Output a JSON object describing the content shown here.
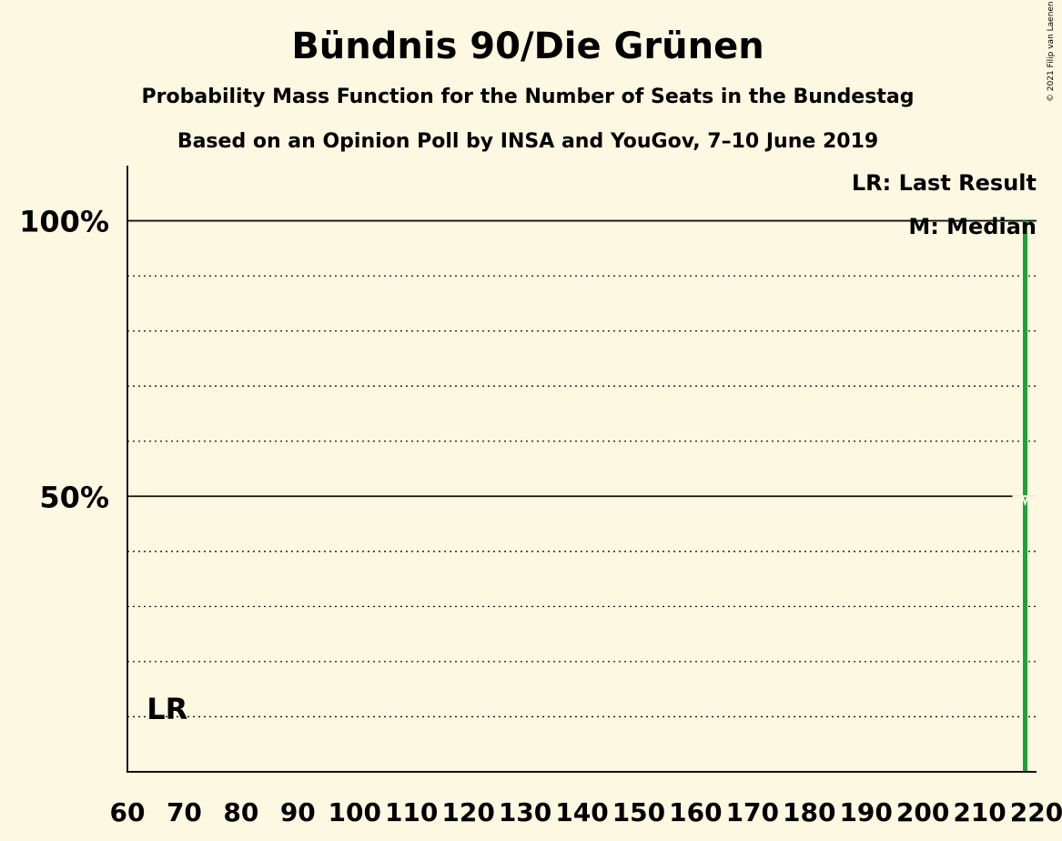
{
  "chart_data": {
    "type": "bar",
    "title": "Bündnis 90/Die Grünen",
    "subtitle": "Probability Mass Function for the Number of Seats in the Bundestag",
    "subtitle2": "Based on an Opinion Poll by INSA and YouGov, 7–10 June 2019",
    "copyright": "© 2021 Filip van Laenen",
    "xlim": [
      60,
      220
    ],
    "ylim": [
      0,
      1.1
    ],
    "x_ticks": [
      "60",
      "70",
      "80",
      "90",
      "100",
      "110",
      "120",
      "130",
      "140",
      "150",
      "160",
      "170",
      "180",
      "190",
      "200",
      "210",
      "220"
    ],
    "y_ticks": [
      {
        "value": 1.0,
        "label": "100%"
      },
      {
        "value": 0.5,
        "label": "50%"
      }
    ],
    "grid_dotted": [
      0.1,
      0.2,
      0.3,
      0.4,
      0.6,
      0.7,
      0.8,
      0.9
    ],
    "series": [
      {
        "x": 218,
        "values": [
          1.0
        ],
        "color": "#1aa338"
      }
    ],
    "median": {
      "x": 218,
      "value": 0.5
    },
    "last_result": {
      "x": 67,
      "label": "LR"
    },
    "legend": [
      "LR: Last Result",
      "M: Median"
    ]
  }
}
